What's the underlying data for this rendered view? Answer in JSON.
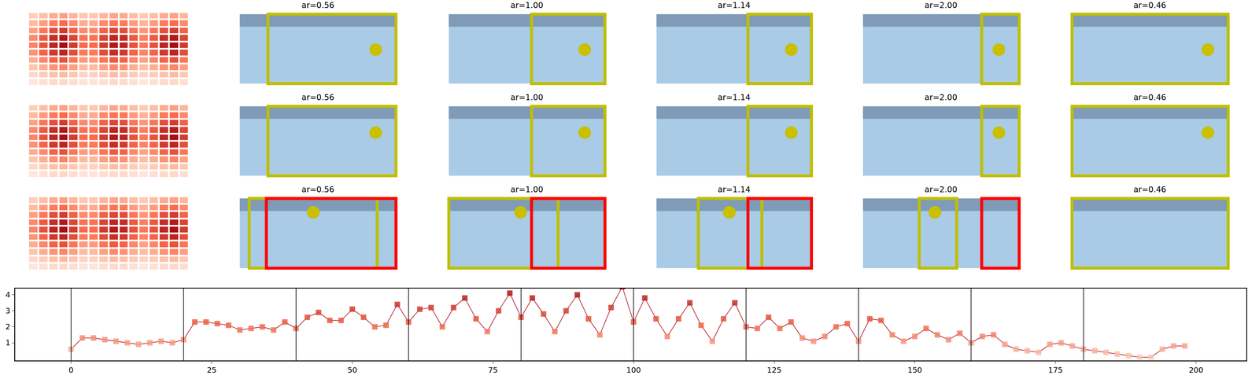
{
  "chart_data": {
    "type": "figure",
    "heatmap": {
      "color_range": [
        0,
        1
      ],
      "cells": [
        [
          0.2,
          0.28,
          0.36,
          0.4,
          0.32,
          0.24,
          0.24,
          0.32,
          0.38,
          0.36,
          0.28,
          0.22,
          0.28,
          0.36,
          0.4,
          0.32
        ],
        [
          0.3,
          0.42,
          0.54,
          0.6,
          0.48,
          0.36,
          0.36,
          0.48,
          0.57,
          0.54,
          0.42,
          0.33,
          0.42,
          0.54,
          0.6,
          0.48
        ],
        [
          0.4,
          0.56,
          0.72,
          0.8,
          0.64,
          0.48,
          0.48,
          0.64,
          0.76,
          0.72,
          0.56,
          0.44,
          0.56,
          0.72,
          0.8,
          0.64
        ],
        [
          0.48,
          0.67,
          0.86,
          0.95,
          0.76,
          0.57,
          0.57,
          0.76,
          0.9,
          0.86,
          0.67,
          0.52,
          0.67,
          0.86,
          0.95,
          0.76
        ],
        [
          0.5,
          0.7,
          0.9,
          1.0,
          0.8,
          0.6,
          0.6,
          0.8,
          0.95,
          0.9,
          0.7,
          0.55,
          0.7,
          0.9,
          1.0,
          0.8
        ],
        [
          0.45,
          0.63,
          0.81,
          0.9,
          0.72,
          0.54,
          0.54,
          0.72,
          0.86,
          0.81,
          0.63,
          0.5,
          0.63,
          0.81,
          0.9,
          0.72
        ],
        [
          0.35,
          0.49,
          0.63,
          0.7,
          0.56,
          0.42,
          0.42,
          0.56,
          0.67,
          0.63,
          0.49,
          0.39,
          0.49,
          0.63,
          0.7,
          0.56
        ],
        [
          0.25,
          0.35,
          0.45,
          0.5,
          0.4,
          0.3,
          0.3,
          0.4,
          0.48,
          0.45,
          0.35,
          0.28,
          0.35,
          0.45,
          0.5,
          0.4
        ],
        [
          0.15,
          0.21,
          0.27,
          0.3,
          0.24,
          0.18,
          0.18,
          0.24,
          0.29,
          0.27,
          0.21,
          0.17,
          0.21,
          0.27,
          0.3,
          0.24
        ],
        [
          0.08,
          0.11,
          0.14,
          0.15,
          0.12,
          0.09,
          0.09,
          0.12,
          0.14,
          0.14,
          0.11,
          0.08,
          0.11,
          0.14,
          0.15,
          0.12
        ]
      ]
    },
    "rows": [
      {
        "panels": [
          {
            "title": "ar=0.56",
            "boxes": [
              {
                "color": "#bfbf00",
                "x": [
                  0.18,
                  1.0
                ]
              }
            ],
            "dot": [
              0.87,
              0.49
            ]
          },
          {
            "title": "ar=1.00",
            "boxes": [
              {
                "color": "#bfbf00",
                "x": [
                  0.53,
                  1.0
                ]
              }
            ],
            "dot": [
              0.87,
              0.49
            ]
          },
          {
            "title": "ar=1.14",
            "boxes": [
              {
                "color": "#bfbf00",
                "x": [
                  0.59,
                  1.0
                ]
              }
            ],
            "dot": [
              0.87,
              0.49
            ]
          },
          {
            "title": "ar=2.00",
            "boxes": [
              {
                "color": "#bfbf00",
                "x": [
                  0.76,
                  1.0
                ]
              }
            ],
            "dot": [
              0.87,
              0.49
            ]
          },
          {
            "title": "ar=0.46",
            "boxes": [
              {
                "color": "#bfbf00",
                "x": [
                  0.0,
                  1.0
                ]
              }
            ],
            "dot": [
              0.87,
              0.49
            ]
          }
        ]
      },
      {
        "panels": [
          {
            "title": "ar=0.56",
            "boxes": [
              {
                "color": "#bfbf00",
                "x": [
                  0.18,
                  1.0
                ]
              }
            ],
            "dot": [
              0.87,
              0.62
            ]
          },
          {
            "title": "ar=1.00",
            "boxes": [
              {
                "color": "#bfbf00",
                "x": [
                  0.53,
                  1.0
                ]
              }
            ],
            "dot": [
              0.87,
              0.62
            ]
          },
          {
            "title": "ar=1.14",
            "boxes": [
              {
                "color": "#bfbf00",
                "x": [
                  0.59,
                  1.0
                ]
              }
            ],
            "dot": [
              0.87,
              0.62
            ]
          },
          {
            "title": "ar=2.00",
            "boxes": [
              {
                "color": "#bfbf00",
                "x": [
                  0.76,
                  1.0
                ]
              }
            ],
            "dot": [
              0.87,
              0.62
            ]
          },
          {
            "title": "ar=0.46",
            "boxes": [
              {
                "color": "#bfbf00",
                "x": [
                  0.0,
                  1.0
                ]
              }
            ],
            "dot": [
              0.87,
              0.62
            ]
          }
        ]
      },
      {
        "panels": [
          {
            "title": "ar=0.56",
            "boxes": [
              {
                "color": "#bfbf00",
                "x": [
                  0.06,
                  0.88
                ]
              },
              {
                "color": "#ff0000",
                "x": [
                  0.17,
                  1.0
                ]
              }
            ],
            "dot": [
              0.47,
              0.8
            ]
          },
          {
            "title": "ar=1.00",
            "boxes": [
              {
                "color": "#bfbf00",
                "x": [
                  0.0,
                  0.7
                ]
              },
              {
                "color": "#ff0000",
                "x": [
                  0.53,
                  1.0
                ]
              }
            ],
            "dot": [
              0.46,
              0.8
            ]
          },
          {
            "title": "ar=1.14",
            "boxes": [
              {
                "color": "#bfbf00",
                "x": [
                  0.27,
                  0.68
                ]
              },
              {
                "color": "#ff0000",
                "x": [
                  0.59,
                  1.0
                ]
              }
            ],
            "dot": [
              0.47,
              0.8
            ]
          },
          {
            "title": "ar=2.00",
            "boxes": [
              {
                "color": "#bfbf00",
                "x": [
                  0.36,
                  0.6
                ]
              },
              {
                "color": "#ff0000",
                "x": [
                  0.76,
                  1.0
                ]
              }
            ],
            "dot": [
              0.46,
              0.8
            ]
          },
          {
            "title": "ar=0.46",
            "boxes": [
              {
                "color": "#bfbf00",
                "x": [
                  0.0,
                  1.0
                ]
              }
            ],
            "dot": null
          }
        ]
      }
    ],
    "line": {
      "type": "line",
      "color": "#b2182b",
      "marker": "square",
      "x": [
        0,
        2,
        4,
        6,
        8,
        10,
        12,
        14,
        16,
        18,
        20,
        22,
        24,
        26,
        28,
        30,
        32,
        34,
        36,
        38,
        40,
        42,
        44,
        46,
        48,
        50,
        52,
        54,
        56,
        58,
        60,
        62,
        64,
        66,
        68,
        70,
        72,
        74,
        76,
        78,
        80,
        82,
        84,
        86,
        88,
        90,
        92,
        94,
        96,
        98,
        100,
        102,
        104,
        106,
        108,
        110,
        112,
        114,
        116,
        118,
        120,
        122,
        124,
        126,
        128,
        130,
        132,
        134,
        136,
        138,
        140,
        142,
        144,
        146,
        148,
        150,
        152,
        154,
        156,
        158,
        160,
        162,
        164,
        166,
        168,
        170,
        172,
        174,
        176,
        178,
        180,
        182,
        184,
        186,
        188,
        190,
        192,
        194,
        196,
        198
      ],
      "values": [
        0.6,
        1.3,
        1.3,
        1.2,
        1.1,
        1.0,
        0.9,
        1.0,
        1.1,
        1.0,
        1.2,
        2.3,
        2.3,
        2.2,
        2.1,
        1.8,
        1.9,
        2.0,
        1.8,
        2.3,
        1.9,
        2.6,
        2.9,
        2.4,
        2.4,
        3.1,
        2.6,
        2.0,
        2.1,
        3.4,
        2.3,
        3.1,
        3.2,
        2.0,
        3.2,
        3.8,
        2.5,
        1.7,
        3.0,
        4.1,
        2.6,
        3.8,
        2.8,
        1.7,
        3.0,
        4.0,
        2.5,
        1.5,
        3.2,
        4.5,
        2.3,
        3.8,
        2.5,
        1.4,
        2.5,
        3.5,
        2.1,
        1.1,
        2.5,
        3.5,
        2.0,
        1.9,
        2.6,
        1.9,
        2.3,
        1.3,
        1.1,
        1.4,
        2.0,
        2.2,
        1.1,
        2.5,
        2.4,
        1.5,
        1.1,
        1.4,
        1.9,
        1.5,
        1.2,
        1.6,
        1.0,
        1.4,
        1.5,
        0.9,
        0.6,
        0.5,
        0.4,
        0.9,
        1.0,
        0.8,
        0.6,
        0.5,
        0.4,
        0.3,
        0.2,
        0.1,
        0.1,
        0.6,
        0.8,
        0.8
      ],
      "xlim": [
        -9.95,
        208.95
      ],
      "xticks": [
        0,
        25,
        50,
        75,
        100,
        125,
        150,
        175,
        200
      ],
      "ylim": [
        -0.1,
        4.4
      ],
      "yticks": [
        1,
        2,
        3,
        4
      ],
      "vlines": [
        0,
        20,
        40,
        60,
        80,
        100,
        120,
        140,
        160,
        180
      ]
    }
  }
}
